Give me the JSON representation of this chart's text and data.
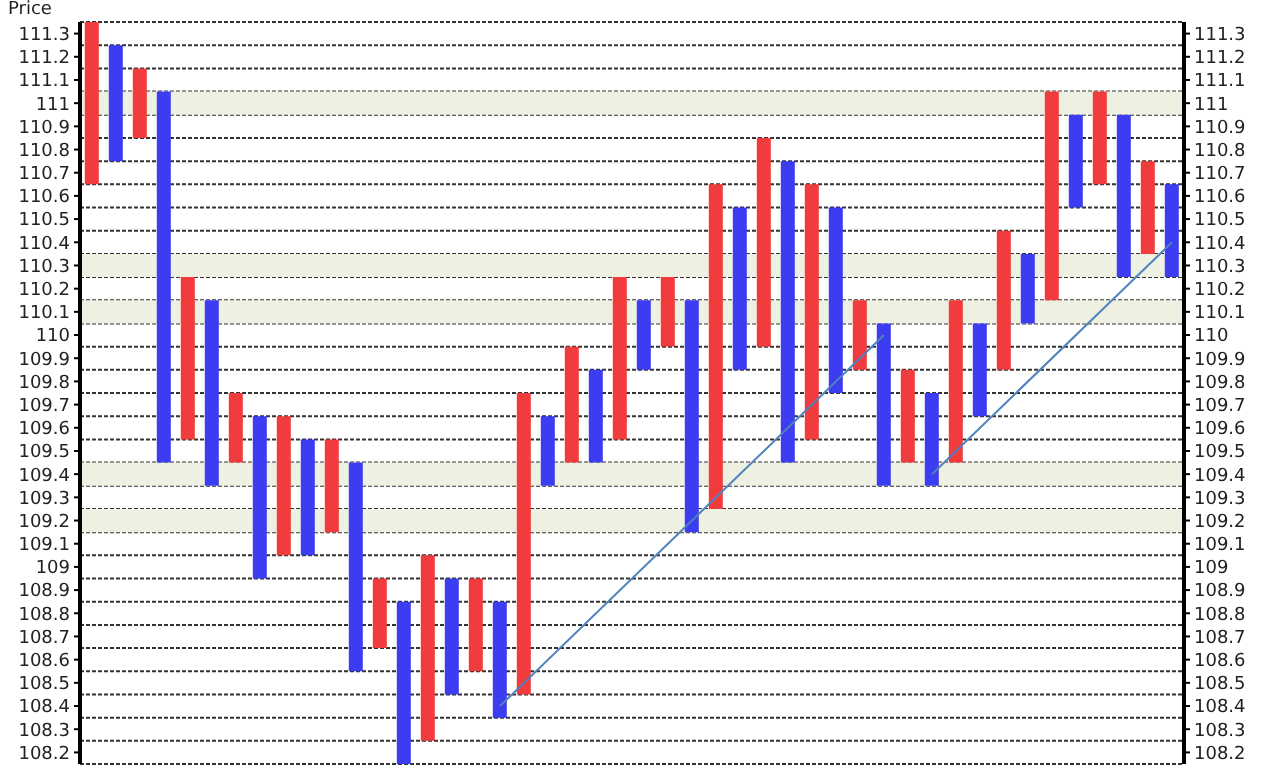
{
  "chart_data": {
    "type": "bar",
    "ylabel": "Price",
    "categories": [
      null,
      null,
      null,
      null,
      null,
      null,
      null,
      null,
      null,
      null,
      null,
      null,
      null,
      null,
      null,
      null,
      null,
      null,
      null,
      null,
      null,
      null,
      null,
      null,
      null,
      null,
      null,
      null,
      null,
      null,
      null,
      null,
      null,
      null,
      null,
      null,
      null,
      null,
      null,
      null,
      null,
      null,
      null,
      null,
      null,
      null
    ],
    "ylim": [
      108.15,
      111.35
    ],
    "y2lim": [
      108.15,
      111.35
    ],
    "yticks": [
      108.2,
      108.3,
      108.4,
      108.5,
      108.6,
      108.7,
      108.8,
      108.9,
      109,
      109.1,
      109.2,
      109.3,
      109.4,
      109.5,
      109.6,
      109.7,
      109.8,
      109.9,
      110,
      110.1,
      110.2,
      110.3,
      110.4,
      110.5,
      110.6,
      110.7,
      110.8,
      110.9,
      111,
      111.1,
      111.2,
      111.3
    ],
    "y2ticks": [
      108.2,
      108.3,
      108.4,
      108.5,
      108.6,
      108.7,
      108.8,
      108.9,
      109,
      109.1,
      109.2,
      109.3,
      109.4,
      109.5,
      109.6,
      109.7,
      109.8,
      109.9,
      110,
      110.1,
      110.2,
      110.3,
      110.4,
      110.5,
      110.6,
      110.7,
      110.8,
      110.9,
      111,
      111.1,
      111.2,
      111.3
    ],
    "tick_labels": "y",
    "grid": "y",
    "bands": [
      {
        "axis": "y",
        "from": 110.95,
        "to": 111.05,
        "color": "#eef1e1"
      },
      {
        "axis": "y",
        "from": 110.25,
        "to": 110.35,
        "color": "#eef1e1"
      },
      {
        "axis": "y",
        "from": 110.05,
        "to": 110.15,
        "color": "#eef1e1"
      },
      {
        "axis": "y",
        "from": 109.35,
        "to": 109.45,
        "color": "#eef1e1"
      },
      {
        "axis": "y",
        "from": 109.15,
        "to": 109.25,
        "color": "#eef1e1"
      }
    ],
    "series": [
      {
        "colors": [
          "#f03c3c",
          "#3c3cf0",
          "#f03c3c",
          "#3c3cf0",
          "#f03c3c",
          "#3c3cf0",
          "#f03c3c",
          "#3c3cf0",
          "#f03c3c",
          "#3c3cf0",
          "#f03c3c",
          "#3c3cf0",
          "#f03c3c",
          "#3c3cf0",
          "#f03c3c",
          "#3c3cf0",
          "#f03c3c",
          "#3c3cf0",
          "#f03c3c",
          "#3c3cf0",
          "#f03c3c",
          "#3c3cf0",
          "#f03c3c",
          "#3c3cf0",
          "#f03c3c",
          "#3c3cf0",
          "#f03c3c",
          "#3c3cf0",
          "#f03c3c",
          "#3c3cf0",
          "#f03c3c",
          "#3c3cf0",
          "#f03c3c",
          "#3c3cf0",
          "#f03c3c",
          "#3c3cf0",
          "#f03c3c",
          "#3c3cf0",
          "#f03c3c",
          "#3c3cf0",
          "#f03c3c",
          "#3c3cf0",
          "#f03c3c",
          "#3c3cf0",
          "#f03c3c",
          "#3c3cf0"
        ],
        "base": [
          110.65,
          110.75,
          110.85,
          109.45,
          109.55,
          109.35,
          109.45,
          108.95,
          109.05,
          109.05,
          109.15,
          108.55,
          108.65,
          108.15,
          108.25,
          108.45,
          108.55,
          108.35,
          108.45,
          109.35,
          109.45,
          109.45,
          109.55,
          109.85,
          109.95,
          109.15,
          109.25,
          109.85,
          109.95,
          109.45,
          109.55,
          109.75,
          109.85,
          109.35,
          109.45,
          109.35,
          109.45,
          109.65,
          109.85,
          110.05,
          110.15,
          110.55,
          110.65,
          110.25,
          110.35,
          110.25
        ],
        "values": [
          0.7,
          0.5,
          0.3,
          1.6,
          0.7,
          0.8,
          0.3,
          0.7,
          0.6,
          0.5,
          0.4,
          0.9,
          0.3,
          0.7,
          0.8,
          0.5,
          0.4,
          0.5,
          1.3,
          0.3,
          0.5,
          0.4,
          0.7,
          0.3,
          0.3,
          1.0,
          1.4,
          0.7,
          0.9,
          1.3,
          1.1,
          0.8,
          0.3,
          0.7,
          0.4,
          0.4,
          0.7,
          0.4,
          0.6,
          0.3,
          0.9,
          0.4,
          0.4,
          0.7,
          0.4,
          0.4
        ]
      },
      {
        "type": "line",
        "marker": "none",
        "color": "#4f81bd",
        "values": [
          null,
          null,
          null,
          null,
          null,
          null,
          null,
          null,
          null,
          null,
          null,
          null,
          null,
          null,
          null,
          null,
          null,
          108.4,
          null,
          null,
          null,
          null,
          null,
          null,
          null,
          null,
          null,
          null,
          null,
          null,
          null,
          null,
          null,
          110.0,
          null,
          null,
          null,
          null,
          null,
          null,
          null,
          null,
          null,
          null,
          null,
          null
        ]
      },
      {
        "type": "line",
        "marker": "none",
        "color": "#4f81bd",
        "values": [
          null,
          null,
          null,
          null,
          null,
          null,
          null,
          null,
          null,
          null,
          null,
          null,
          null,
          null,
          null,
          null,
          null,
          null,
          null,
          null,
          null,
          null,
          null,
          null,
          null,
          null,
          null,
          null,
          null,
          null,
          null,
          null,
          null,
          null,
          null,
          109.4,
          null,
          null,
          null,
          null,
          null,
          null,
          null,
          null,
          null,
          110.4
        ]
      }
    ]
  }
}
